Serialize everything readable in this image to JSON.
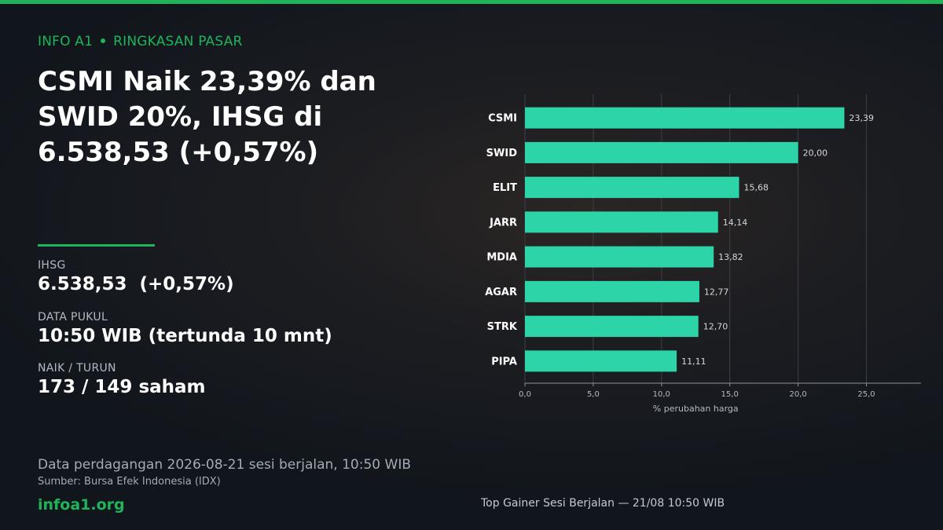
{
  "header": {
    "brand_label": "INFO A1",
    "section_label": "RINGKASAN PASAR",
    "headline": "CSMI Naik 23,39% dan SWID 20%, IHSG di 6.538,53 (+0,57%)"
  },
  "stats": [
    {
      "label": "IHSG",
      "value": "6.538,53  (+0,57%)"
    },
    {
      "label": "DATA PUKUL",
      "value": "10:50 WIB (tertunda 10 mnt)"
    },
    {
      "label": "NAIK / TURUN",
      "value": "173 / 149 saham"
    }
  ],
  "footer": {
    "note": "Data perdagangan 2026-08-21 sesi berjalan, 10:50 WIB",
    "source": "Sumber: Bursa Efek Indonesia (IDX)",
    "site": "infoa1.org"
  },
  "colors": {
    "accent": "#1fb45a",
    "bar": "#2dd4a8"
  },
  "chart_data": {
    "type": "bar",
    "orientation": "horizontal",
    "caption": "Top Gainer Sesi Berjalan — 21/08 10:50 WIB",
    "xlabel": "% perubahan harga",
    "ylabel": "",
    "categories": [
      "CSMI",
      "SWID",
      "ELIT",
      "JARR",
      "MDIA",
      "AGAR",
      "STRK",
      "PIPA"
    ],
    "values": [
      23.39,
      20.0,
      15.68,
      14.14,
      13.82,
      12.77,
      12.7,
      11.11
    ],
    "value_labels": [
      "23,39",
      "20,00",
      "15,68",
      "14,14",
      "13,82",
      "12,77",
      "12,70",
      "11,11"
    ],
    "xlim": [
      0,
      29
    ],
    "xticks": [
      0,
      5,
      10,
      15,
      20,
      25
    ],
    "xtick_labels": [
      "0,0",
      "5,0",
      "10,0",
      "15,0",
      "20,0",
      "25,0"
    ],
    "grid": true,
    "legend": "none"
  }
}
